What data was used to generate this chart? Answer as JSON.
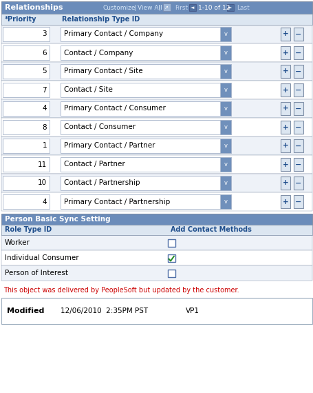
{
  "fig_width": 4.56,
  "fig_height": 5.7,
  "dpi": 100,
  "bg_color": "#ffffff",
  "header_bg": "#6b8cba",
  "header_text_color": "#ffffff",
  "subheader_bg": "#dce6f1",
  "subheader_text_color": "#1f4e8c",
  "row_bg_light": "#eef2f8",
  "row_bg_white": "#ffffff",
  "border_color": "#a0b0c8",
  "cell_border": "#b0bcd0",
  "dropdown_bg": "#7090bb",
  "table_title": "Relationships",
  "nav_customize": "Customize",
  "nav_viewall": "View All",
  "nav_first": "First",
  "nav_pages": "1-10 of 12",
  "nav_last": "Last",
  "col1_header": "*Priority",
  "col2_header": "Relationship Type ID",
  "rows": [
    {
      "priority": "3",
      "type": "Primary Contact / Company"
    },
    {
      "priority": "6",
      "type": "Contact / Company"
    },
    {
      "priority": "5",
      "type": "Primary Contact / Site"
    },
    {
      "priority": "7",
      "type": "Contact / Site"
    },
    {
      "priority": "4",
      "type": "Primary Contact / Consumer"
    },
    {
      "priority": "8",
      "type": "Contact / Consumer"
    },
    {
      "priority": "1",
      "type": "Primary Contact / Partner"
    },
    {
      "priority": "11",
      "type": "Contact / Partner"
    },
    {
      "priority": "10",
      "type": "Contact / Partnership"
    },
    {
      "priority": "4",
      "type": "Primary Contact / Partnership"
    }
  ],
  "sync_title": "Person Basic Sync Setting",
  "sync_col1": "Role Type ID",
  "sync_col2": "Add Contact Methods",
  "sync_rows": [
    {
      "role": "Worker",
      "checked": false
    },
    {
      "role": "Individual Consumer",
      "checked": true
    },
    {
      "role": "Person of Interest",
      "checked": false
    }
  ],
  "notice_text": "This object was delivered by PeopleSoft but updated by the customer.",
  "notice_color": "#cc0000",
  "modified_label": "Modified",
  "modified_date": "12/06/2010  2:35PM PST",
  "modified_by": "VP1",
  "checkbox_border": "#5070a8",
  "checkmark_color": "#228b22",
  "table_outer_border": "#8090a8",
  "plus_minus_bg": "#dce6f1",
  "plus_minus_border": "#8090a8",
  "plus_minus_color": "#1f4e8c"
}
